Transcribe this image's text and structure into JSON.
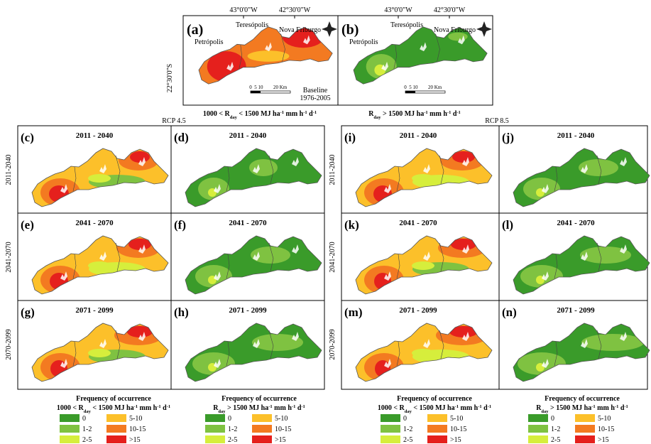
{
  "top": {
    "lon_labels": [
      "43°0'0\"W",
      "42°30'0\"W"
    ],
    "lat_label": "22°30'0\"S",
    "panels": [
      {
        "letter": "(a)",
        "places": [
          "Petrópolis",
          "Teresópolis",
          "Nova Friburgo"
        ],
        "scale_labels": [
          "0",
          "5",
          "10",
          "20 Km"
        ],
        "note": [
          "Baseline",
          "1976-2005"
        ]
      },
      {
        "letter": "(b)",
        "places": [
          "Petrópolis",
          "Teresópolis",
          "Nova Friburgo"
        ],
        "scale_labels": [
          "0",
          "5",
          "10",
          "20 Km"
        ]
      }
    ],
    "captions": [
      [
        "1000 < R",
        "day",
        " < 1500 MJ ha",
        "-1",
        " mm h",
        "-1",
        " d",
        "-1"
      ],
      [
        "R",
        "day",
        " > 1500 MJ ha",
        "-1",
        " mm h",
        "-1",
        " d",
        "-1"
      ]
    ]
  },
  "scenarios": [
    {
      "label": "RCP 4.5",
      "row_labels": [
        "2011-2040",
        "2041-2070",
        "2070-2099"
      ],
      "rows": [
        [
          {
            "letter": "(c)",
            "period": "2011 - 2040"
          },
          {
            "letter": "(d)",
            "period": "2011 - 2040"
          }
        ],
        [
          {
            "letter": "(e)",
            "period": "2041 - 2070"
          },
          {
            "letter": "(f)",
            "period": "2041 - 2070"
          }
        ],
        [
          {
            "letter": "(g)",
            "period": "2071 - 2099"
          },
          {
            "letter": "(h)",
            "period": "2071 - 2099"
          }
        ]
      ]
    },
    {
      "label": "RCP 8.5",
      "row_labels": [
        "2011-2040",
        "2041-2070",
        "2070-2099"
      ],
      "rows": [
        [
          {
            "letter": "(i)",
            "period": "2011 - 2040"
          },
          {
            "letter": "(j)",
            "period": "2011 - 2040"
          }
        ],
        [
          {
            "letter": "(k)",
            "period": "2041 - 2070"
          },
          {
            "letter": "(l)",
            "period": "2041 - 2070"
          }
        ],
        [
          {
            "letter": "(m)",
            "period": "2071 - 2099"
          },
          {
            "letter": "(n)",
            "period": "2071 - 2099"
          }
        ]
      ]
    }
  ],
  "legends": [
    {
      "title": "Frequency of occurrence",
      "subtitle": [
        "1000 < R",
        "day",
        " < 1500 MJ ha",
        "-1",
        " mm h",
        "-1",
        " d",
        "-1"
      ],
      "items": [
        {
          "label": "0",
          "color": "#3a9b2a"
        },
        {
          "label": "1-2",
          "color": "#7fc241"
        },
        {
          "label": "2-5",
          "color": "#d6ee3c"
        },
        {
          "label": "5-10",
          "color": "#fcc02a"
        },
        {
          "label": "10-15",
          "color": "#f37a21"
        },
        {
          "label": ">15",
          "color": "#e5201d"
        }
      ]
    },
    {
      "title": "Frequency of occurrence",
      "subtitle": [
        "R",
        "day",
        " > 1500 MJ ha",
        "-1",
        " mm h",
        "-1",
        " d",
        "-1"
      ],
      "items": [
        {
          "label": "0",
          "color": "#3a9b2a"
        },
        {
          "label": "1-2",
          "color": "#7fc241"
        },
        {
          "label": "2-5",
          "color": "#d6ee3c"
        },
        {
          "label": "5-10",
          "color": "#fcc02a"
        },
        {
          "label": "10-15",
          "color": "#f37a21"
        },
        {
          "label": ">15",
          "color": "#e5201d"
        }
      ]
    },
    {
      "title": "Frequency of occurrence",
      "subtitle": [
        "1000 < R",
        "day",
        " < 1500 MJ ha",
        "-1",
        " mm h",
        "-1",
        " d",
        "-1"
      ],
      "items": [
        {
          "label": "0",
          "color": "#3a9b2a"
        },
        {
          "label": "1-2",
          "color": "#7fc241"
        },
        {
          "label": "2-5",
          "color": "#d6ee3c"
        },
        {
          "label": "5-10",
          "color": "#fcc02a"
        },
        {
          "label": "10-15",
          "color": "#f37a21"
        },
        {
          "label": ">15",
          "color": "#e5201d"
        }
      ]
    },
    {
      "title": "Frequency of occurrence",
      "subtitle": [
        "R",
        "day",
        " > 1500 MJ ha",
        "-1",
        " mm h",
        "-1",
        " d",
        "-1"
      ],
      "items": [
        {
          "label": "0",
          "color": "#3a9b2a"
        },
        {
          "label": "1-2",
          "color": "#7fc241"
        },
        {
          "label": "2-5",
          "color": "#d6ee3c"
        },
        {
          "label": "5-10",
          "color": "#fcc02a"
        },
        {
          "label": "10-15",
          "color": "#f37a21"
        },
        {
          "label": ">15",
          "color": "#e5201d"
        }
      ]
    }
  ]
}
